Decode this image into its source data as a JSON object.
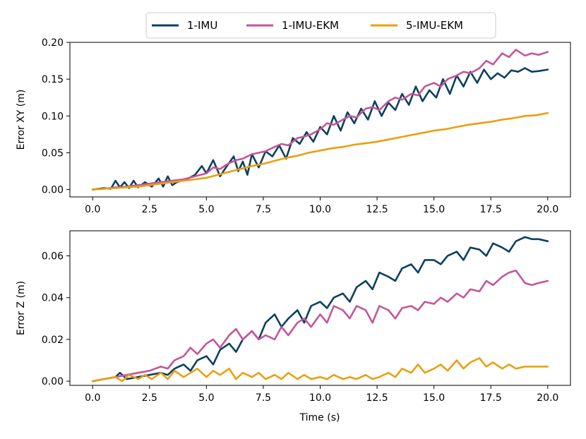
{
  "chart_data": {
    "type": "line",
    "legend": {
      "placement": "top-center",
      "entries": [
        "1-IMU",
        "1-IMU-EKM",
        "5-IMU-EKM"
      ]
    },
    "series_colors": {
      "1-IMU": "#0d4060",
      "1-IMU-EKM": "#c4569a",
      "5-IMU-EKM": "#e8a010"
    },
    "x_ticks": [
      0.0,
      2.5,
      5.0,
      7.5,
      10.0,
      12.5,
      15.0,
      17.5,
      20.0
    ],
    "x_tick_labels": [
      "0.0",
      "2.5",
      "5.0",
      "7.5",
      "10.0",
      "12.5",
      "15.0",
      "17.5",
      "20.0"
    ],
    "xlim": [
      -1.0,
      21.0
    ],
    "xlabel": "Time (s)",
    "panels": [
      {
        "ylabel": "Error XY (m)",
        "ylim": [
          -0.01,
          0.2
        ],
        "y_ticks": [
          0.0,
          0.05,
          0.1,
          0.15,
          0.2
        ],
        "y_tick_labels": [
          "0.00",
          "0.05",
          "0.10",
          "0.15",
          "0.20"
        ],
        "series": [
          {
            "name": "1-IMU",
            "x": [
              0,
              0.5,
              0.8,
              1.0,
              1.2,
              1.4,
              1.6,
              1.8,
              2.0,
              2.3,
              2.6,
              2.9,
              3.1,
              3.3,
              3.5,
              3.7,
              3.9,
              4.2,
              4.5,
              4.8,
              5.0,
              5.3,
              5.6,
              5.9,
              6.2,
              6.4,
              6.6,
              6.8,
              7.0,
              7.3,
              7.6,
              7.9,
              8.2,
              8.5,
              8.8,
              9.1,
              9.4,
              9.7,
              10.0,
              10.3,
              10.6,
              10.9,
              11.2,
              11.5,
              11.8,
              12.1,
              12.4,
              12.7,
              13.0,
              13.3,
              13.6,
              13.9,
              14.2,
              14.5,
              14.8,
              15.1,
              15.4,
              15.7,
              16.0,
              16.3,
              16.6,
              16.9,
              17.2,
              17.5,
              17.8,
              18.1,
              18.4,
              18.7,
              19.0,
              19.3,
              19.6,
              20.0
            ],
            "y": [
              0.0,
              0.002,
              0.001,
              0.012,
              0.003,
              0.01,
              0.002,
              0.012,
              0.003,
              0.01,
              0.004,
              0.015,
              0.004,
              0.018,
              0.006,
              0.01,
              0.012,
              0.015,
              0.02,
              0.032,
              0.022,
              0.04,
              0.018,
              0.032,
              0.045,
              0.025,
              0.038,
              0.02,
              0.048,
              0.03,
              0.052,
              0.045,
              0.06,
              0.042,
              0.07,
              0.062,
              0.078,
              0.065,
              0.085,
              0.075,
              0.1,
              0.08,
              0.105,
              0.09,
              0.11,
              0.095,
              0.12,
              0.1,
              0.118,
              0.108,
              0.13,
              0.115,
              0.14,
              0.12,
              0.135,
              0.125,
              0.15,
              0.13,
              0.155,
              0.14,
              0.16,
              0.145,
              0.163,
              0.15,
              0.158,
              0.152,
              0.162,
              0.16,
              0.165,
              0.16,
              0.161,
              0.163
            ]
          },
          {
            "name": "1-IMU-EKM",
            "x": [
              0,
              0.5,
              1.0,
              1.5,
              2.0,
              2.5,
              3.0,
              3.5,
              4.0,
              4.5,
              5.0,
              5.3,
              5.6,
              6.0,
              6.3,
              6.6,
              7.0,
              7.3,
              7.6,
              8.0,
              8.3,
              8.6,
              9.0,
              9.3,
              9.6,
              10.0,
              10.3,
              10.6,
              11.0,
              11.3,
              11.6,
              12.0,
              12.3,
              12.6,
              13.0,
              13.3,
              13.6,
              14.0,
              14.3,
              14.6,
              15.0,
              15.3,
              15.6,
              16.0,
              16.3,
              16.6,
              17.0,
              17.3,
              17.6,
              18.0,
              18.3,
              18.6,
              19.0,
              19.3,
              19.6,
              20.0
            ],
            "y": [
              0.0,
              0.001,
              0.003,
              0.004,
              0.006,
              0.008,
              0.01,
              0.012,
              0.014,
              0.018,
              0.022,
              0.03,
              0.028,
              0.036,
              0.04,
              0.042,
              0.048,
              0.05,
              0.052,
              0.058,
              0.062,
              0.06,
              0.07,
              0.072,
              0.075,
              0.082,
              0.09,
              0.088,
              0.095,
              0.1,
              0.098,
              0.11,
              0.112,
              0.108,
              0.12,
              0.125,
              0.122,
              0.13,
              0.128,
              0.14,
              0.145,
              0.14,
              0.15,
              0.155,
              0.16,
              0.158,
              0.165,
              0.175,
              0.17,
              0.185,
              0.18,
              0.19,
              0.182,
              0.185,
              0.183,
              0.187
            ]
          },
          {
            "name": "5-IMU-EKM",
            "x": [
              0,
              0.5,
              1.0,
              1.5,
              2.0,
              2.5,
              3.0,
              3.5,
              4.0,
              4.5,
              5.0,
              5.5,
              6.0,
              6.5,
              7.0,
              7.5,
              8.0,
              8.5,
              9.0,
              9.5,
              10.0,
              10.5,
              11.0,
              11.5,
              12.0,
              12.5,
              13.0,
              13.5,
              14.0,
              14.5,
              15.0,
              15.5,
              16.0,
              16.5,
              17.0,
              17.5,
              18.0,
              18.5,
              19.0,
              19.5,
              20.0
            ],
            "y": [
              0.0,
              0.001,
              0.002,
              0.003,
              0.004,
              0.006,
              0.008,
              0.01,
              0.012,
              0.014,
              0.016,
              0.02,
              0.024,
              0.028,
              0.032,
              0.035,
              0.039,
              0.043,
              0.046,
              0.05,
              0.053,
              0.056,
              0.058,
              0.061,
              0.063,
              0.065,
              0.068,
              0.071,
              0.074,
              0.077,
              0.08,
              0.082,
              0.085,
              0.088,
              0.09,
              0.092,
              0.095,
              0.097,
              0.1,
              0.101,
              0.104
            ]
          }
        ]
      },
      {
        "ylabel": "Error Z (m)",
        "ylim": [
          -0.002,
          0.072
        ],
        "y_ticks": [
          0.0,
          0.02,
          0.04,
          0.06
        ],
        "y_tick_labels": [
          "0.00",
          "0.02",
          "0.04",
          "0.06"
        ],
        "series": [
          {
            "name": "1-IMU",
            "x": [
              0,
              0.5,
              1.0,
              1.2,
              1.5,
              2.0,
              2.5,
              3.0,
              3.3,
              3.6,
              4.0,
              4.3,
              4.6,
              5.0,
              5.3,
              5.6,
              6.0,
              6.3,
              6.6,
              7.0,
              7.3,
              7.6,
              8.0,
              8.3,
              8.6,
              9.0,
              9.3,
              9.6,
              10.0,
              10.3,
              10.6,
              11.0,
              11.3,
              11.6,
              12.0,
              12.3,
              12.6,
              13.0,
              13.3,
              13.6,
              14.0,
              14.3,
              14.6,
              15.0,
              15.3,
              15.6,
              16.0,
              16.3,
              16.6,
              17.0,
              17.3,
              17.6,
              18.0,
              18.3,
              18.6,
              19.0,
              19.3,
              19.6,
              20.0
            ],
            "y": [
              0.0,
              0.001,
              0.002,
              0.004,
              0.001,
              0.002,
              0.003,
              0.004,
              0.003,
              0.006,
              0.008,
              0.005,
              0.01,
              0.012,
              0.008,
              0.015,
              0.018,
              0.014,
              0.02,
              0.024,
              0.02,
              0.028,
              0.032,
              0.026,
              0.03,
              0.034,
              0.028,
              0.036,
              0.038,
              0.035,
              0.04,
              0.042,
              0.038,
              0.045,
              0.048,
              0.044,
              0.052,
              0.05,
              0.048,
              0.054,
              0.056,
              0.052,
              0.058,
              0.058,
              0.056,
              0.06,
              0.062,
              0.058,
              0.064,
              0.063,
              0.06,
              0.066,
              0.064,
              0.062,
              0.067,
              0.069,
              0.068,
              0.068,
              0.067
            ]
          },
          {
            "name": "1-IMU-EKM",
            "x": [
              0,
              0.5,
              1.0,
              1.5,
              2.0,
              2.5,
              3.0,
              3.3,
              3.6,
              4.0,
              4.3,
              4.6,
              5.0,
              5.3,
              5.6,
              6.0,
              6.3,
              6.6,
              7.0,
              7.3,
              7.6,
              8.0,
              8.3,
              8.6,
              9.0,
              9.3,
              9.6,
              10.0,
              10.3,
              10.6,
              11.0,
              11.3,
              11.6,
              12.0,
              12.3,
              12.6,
              13.0,
              13.3,
              13.6,
              14.0,
              14.3,
              14.6,
              15.0,
              15.3,
              15.6,
              16.0,
              16.3,
              16.6,
              17.0,
              17.3,
              17.6,
              18.0,
              18.3,
              18.6,
              19.0,
              19.3,
              19.6,
              20.0
            ],
            "y": [
              0.0,
              0.001,
              0.002,
              0.003,
              0.004,
              0.005,
              0.007,
              0.006,
              0.01,
              0.012,
              0.016,
              0.013,
              0.018,
              0.02,
              0.016,
              0.022,
              0.025,
              0.02,
              0.024,
              0.02,
              0.022,
              0.02,
              0.026,
              0.022,
              0.028,
              0.03,
              0.026,
              0.032,
              0.028,
              0.036,
              0.034,
              0.03,
              0.036,
              0.034,
              0.028,
              0.036,
              0.034,
              0.03,
              0.035,
              0.036,
              0.034,
              0.038,
              0.037,
              0.04,
              0.038,
              0.042,
              0.04,
              0.044,
              0.043,
              0.048,
              0.046,
              0.05,
              0.052,
              0.053,
              0.047,
              0.046,
              0.047,
              0.048
            ]
          },
          {
            "name": "5-IMU-EKM",
            "x": [
              0,
              0.5,
              1.0,
              1.3,
              1.6,
              2.0,
              2.3,
              2.6,
              3.0,
              3.3,
              3.6,
              4.0,
              4.3,
              4.6,
              5.0,
              5.3,
              5.6,
              6.0,
              6.3,
              6.6,
              7.0,
              7.3,
              7.6,
              8.0,
              8.3,
              8.6,
              9.0,
              9.3,
              9.6,
              10.0,
              10.3,
              10.6,
              11.0,
              11.3,
              11.6,
              12.0,
              12.3,
              12.6,
              13.0,
              13.3,
              13.6,
              14.0,
              14.3,
              14.6,
              15.0,
              15.3,
              15.6,
              16.0,
              16.3,
              16.6,
              17.0,
              17.3,
              17.6,
              18.0,
              18.3,
              18.6,
              19.0,
              19.3,
              19.6,
              20.0
            ],
            "y": [
              0.0,
              0.001,
              0.002,
              0.0,
              0.003,
              0.001,
              0.003,
              0.001,
              0.004,
              0.001,
              0.005,
              0.002,
              0.004,
              0.006,
              0.002,
              0.005,
              0.003,
              0.006,
              0.001,
              0.004,
              0.002,
              0.004,
              0.001,
              0.003,
              0.001,
              0.004,
              0.001,
              0.003,
              0.001,
              0.002,
              0.001,
              0.003,
              0.001,
              0.002,
              0.001,
              0.003,
              0.001,
              0.002,
              0.004,
              0.002,
              0.006,
              0.004,
              0.008,
              0.004,
              0.006,
              0.008,
              0.005,
              0.01,
              0.006,
              0.009,
              0.011,
              0.007,
              0.009,
              0.006,
              0.008,
              0.006,
              0.007,
              0.007,
              0.007,
              0.007
            ]
          }
        ]
      }
    ]
  }
}
